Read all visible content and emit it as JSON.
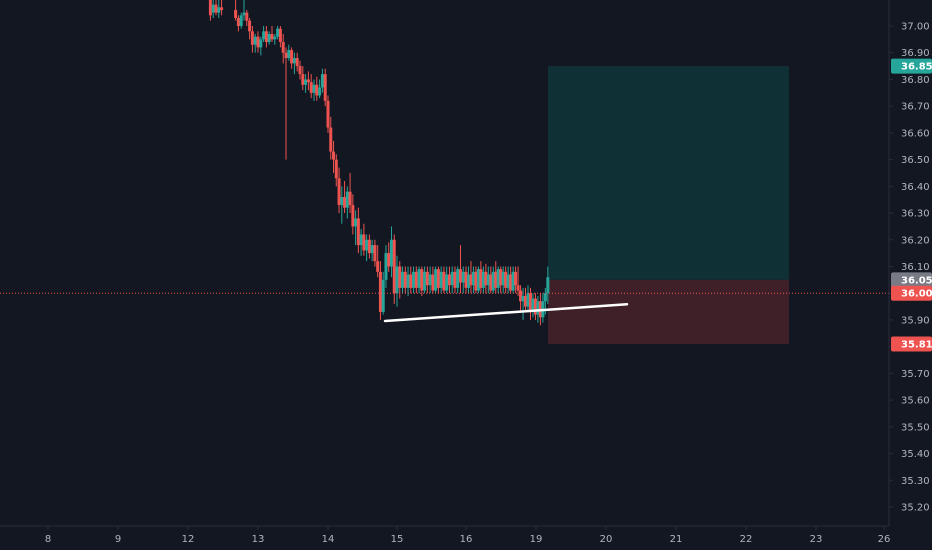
{
  "chart_data": {
    "type": "candlestick",
    "colors": {
      "background": "#131722",
      "up": "#26a69a",
      "down": "#ef5350",
      "price_line": "#ef5350",
      "profit_zone": "#0f3035",
      "loss_zone": "#3f2028",
      "trendline": "#ffffff",
      "axis_text": "#b2b5be",
      "axis_line": "#2a2e39"
    },
    "x_ticks": [
      "8",
      "9",
      "12",
      "13",
      "14",
      "15",
      "16",
      "19",
      "20",
      "21",
      "22",
      "23",
      "26"
    ],
    "y_ticks": [
      "37.00",
      "36.90",
      "36.80",
      "36.70",
      "36.60",
      "36.50",
      "36.40",
      "36.30",
      "36.20",
      "36.10",
      "36.00",
      "35.90",
      "35.80",
      "35.70",
      "35.60",
      "35.50",
      "35.40",
      "35.30",
      "35.20"
    ],
    "ylim": [
      35.15,
      37.1
    ],
    "badges": [
      {
        "label": "36.85",
        "value": 36.85,
        "color": "#26a69a"
      },
      {
        "label": "36.05",
        "value": 36.05,
        "color": "#787b86"
      },
      {
        "label": "36.00",
        "value": 36.0,
        "color": "#ef5350"
      },
      {
        "label": "35.81",
        "value": 35.81,
        "color": "#ef5350"
      }
    ],
    "current_price": 36.0,
    "position": {
      "entry": 36.05,
      "take_profit": 36.85,
      "stop_loss": 35.81,
      "start_day": 19.2,
      "end_day": 22.65
    },
    "trendline": {
      "from_day": 14.8,
      "from_price": 35.9,
      "to_day": 20.3,
      "to_price": 35.97
    },
    "candles": [
      [
        12.32,
        37.1,
        37.1,
        37.02,
        37.04
      ],
      [
        12.36,
        37.05,
        37.1,
        37.03,
        37.08
      ],
      [
        12.4,
        37.08,
        37.1,
        37.04,
        37.05
      ],
      [
        12.44,
        37.05,
        37.1,
        37.03,
        37.07
      ],
      [
        12.48,
        37.07,
        37.1,
        37.04,
        37.06
      ],
      [
        12.68,
        37.06,
        37.1,
        37.02,
        37.03
      ],
      [
        12.72,
        37.03,
        37.04,
        36.98,
        37.0
      ],
      [
        12.76,
        37.0,
        37.05,
        36.99,
        37.04
      ],
      [
        12.8,
        37.04,
        37.1,
        37.02,
        37.05
      ],
      [
        12.84,
        37.05,
        37.06,
        37.0,
        37.02
      ],
      [
        12.88,
        37.02,
        37.03,
        36.95,
        36.98
      ],
      [
        12.92,
        36.98,
        37.0,
        36.9,
        36.93
      ],
      [
        12.96,
        36.93,
        36.97,
        36.9,
        36.96
      ],
      [
        13.0,
        36.96,
        36.98,
        36.9,
        36.92
      ],
      [
        13.04,
        36.92,
        36.96,
        36.89,
        36.95
      ],
      [
        13.08,
        36.95,
        37.0,
        36.94,
        36.98
      ],
      [
        13.12,
        36.98,
        37.0,
        36.92,
        36.94
      ],
      [
        13.16,
        36.94,
        36.98,
        36.93,
        36.97
      ],
      [
        13.2,
        36.97,
        37.0,
        36.94,
        36.95
      ],
      [
        13.24,
        36.95,
        36.97,
        36.93,
        36.96
      ],
      [
        13.28,
        36.96,
        37.0,
        36.95,
        36.99
      ],
      [
        13.32,
        36.99,
        37.0,
        36.92,
        36.94
      ],
      [
        13.36,
        36.94,
        36.97,
        36.86,
        36.9
      ],
      [
        13.4,
        36.9,
        36.92,
        36.5,
        36.88
      ],
      [
        13.44,
        36.88,
        36.93,
        36.87,
        36.91
      ],
      [
        13.48,
        36.91,
        36.92,
        36.84,
        36.86
      ],
      [
        13.52,
        36.86,
        36.9,
        36.82,
        36.88
      ],
      [
        13.56,
        36.88,
        36.9,
        36.83,
        36.85
      ],
      [
        13.6,
        36.85,
        36.87,
        36.8,
        36.82
      ],
      [
        13.64,
        36.82,
        36.85,
        36.76,
        36.78
      ],
      [
        13.68,
        36.78,
        36.82,
        36.75,
        36.8
      ],
      [
        13.72,
        36.8,
        36.83,
        36.76,
        36.79
      ],
      [
        13.76,
        36.79,
        36.82,
        36.73,
        36.75
      ],
      [
        13.8,
        36.75,
        36.8,
        36.72,
        36.78
      ],
      [
        13.84,
        36.78,
        36.81,
        36.72,
        36.74
      ],
      [
        13.88,
        36.74,
        36.8,
        36.73,
        36.77
      ],
      [
        13.92,
        36.77,
        36.84,
        36.75,
        36.82
      ],
      [
        13.96,
        36.82,
        36.84,
        36.7,
        36.72
      ],
      [
        14.0,
        36.72,
        36.74,
        36.6,
        36.62
      ],
      [
        14.04,
        36.62,
        36.66,
        36.5,
        36.53
      ],
      [
        14.08,
        36.53,
        36.57,
        36.45,
        36.5
      ],
      [
        14.12,
        36.5,
        36.52,
        36.4,
        36.43
      ],
      [
        14.16,
        36.43,
        36.47,
        36.3,
        36.33
      ],
      [
        14.2,
        36.33,
        36.4,
        36.26,
        36.36
      ],
      [
        14.24,
        36.36,
        36.42,
        36.3,
        36.32
      ],
      [
        14.28,
        36.32,
        36.4,
        36.28,
        36.38
      ],
      [
        14.32,
        36.38,
        36.45,
        36.3,
        36.33
      ],
      [
        14.36,
        36.33,
        36.37,
        36.22,
        36.25
      ],
      [
        14.4,
        36.25,
        36.31,
        36.18,
        36.28
      ],
      [
        14.44,
        36.28,
        36.32,
        36.15,
        36.18
      ],
      [
        14.48,
        36.18,
        36.24,
        36.14,
        36.22
      ],
      [
        14.52,
        36.22,
        36.26,
        36.14,
        36.16
      ],
      [
        14.56,
        36.16,
        36.22,
        36.12,
        36.2
      ],
      [
        14.6,
        36.2,
        36.22,
        36.13,
        36.15
      ],
      [
        14.64,
        36.15,
        36.2,
        36.12,
        36.18
      ],
      [
        14.68,
        36.18,
        36.2,
        36.1,
        36.12
      ],
      [
        14.72,
        36.12,
        36.18,
        36.06,
        36.08
      ],
      [
        14.76,
        36.08,
        36.12,
        35.9,
        35.93
      ],
      [
        14.8,
        35.93,
        36.08,
        35.92,
        36.05
      ],
      [
        14.84,
        36.05,
        36.18,
        36.02,
        36.15
      ],
      [
        14.88,
        36.15,
        36.19,
        36.08,
        36.1
      ],
      [
        14.92,
        36.1,
        36.25,
        36.06,
        36.2
      ],
      [
        14.96,
        36.2,
        36.22,
        35.96,
        36.0
      ],
      [
        15.0,
        36.0,
        36.14,
        35.95,
        36.1
      ],
      [
        15.04,
        36.1,
        36.12,
        35.98,
        36.02
      ],
      [
        15.08,
        36.02,
        36.1,
        36.0,
        36.08
      ],
      [
        15.12,
        36.08,
        36.1,
        36.0,
        36.02
      ],
      [
        15.16,
        36.02,
        36.1,
        35.99,
        36.07
      ],
      [
        15.2,
        36.07,
        36.1,
        36.0,
        36.02
      ],
      [
        15.24,
        36.02,
        36.1,
        36.0,
        36.08
      ],
      [
        15.28,
        36.08,
        36.1,
        36.0,
        36.02
      ],
      [
        15.32,
        36.02,
        36.1,
        36.0,
        36.09
      ],
      [
        15.36,
        36.09,
        36.1,
        35.99,
        36.01
      ],
      [
        15.4,
        36.01,
        36.1,
        36.0,
        36.08
      ],
      [
        15.44,
        36.08,
        36.1,
        36.0,
        36.03
      ],
      [
        15.48,
        36.03,
        36.1,
        36.0,
        36.07
      ],
      [
        15.52,
        36.07,
        36.1,
        36.0,
        36.01
      ],
      [
        15.56,
        36.01,
        36.1,
        36.0,
        36.09
      ],
      [
        15.6,
        36.09,
        36.1,
        36.0,
        36.02
      ],
      [
        15.64,
        36.02,
        36.1,
        36.0,
        36.08
      ],
      [
        15.68,
        36.08,
        36.1,
        36.0,
        36.01
      ],
      [
        15.72,
        36.01,
        36.1,
        36.0,
        36.07
      ],
      [
        15.76,
        36.07,
        36.1,
        36.0,
        36.03
      ],
      [
        15.8,
        36.03,
        36.1,
        36.0,
        36.08
      ],
      [
        15.84,
        36.08,
        36.1,
        36.0,
        36.02
      ],
      [
        15.88,
        36.02,
        36.1,
        36.0,
        36.09
      ],
      [
        15.92,
        36.09,
        36.18,
        36.0,
        36.04
      ],
      [
        15.96,
        36.04,
        36.1,
        36.0,
        36.08
      ],
      [
        16.0,
        36.08,
        36.1,
        36.0,
        36.02
      ],
      [
        16.04,
        36.02,
        36.1,
        36.0,
        36.07
      ],
      [
        16.08,
        36.07,
        36.12,
        36.0,
        36.03
      ],
      [
        16.12,
        36.03,
        36.1,
        36.0,
        36.08
      ],
      [
        16.16,
        36.08,
        36.1,
        36.0,
        36.01
      ],
      [
        16.2,
        36.01,
        36.1,
        36.0,
        36.09
      ],
      [
        16.24,
        36.09,
        36.12,
        36.0,
        36.02
      ],
      [
        16.28,
        36.02,
        36.1,
        36.0,
        36.08
      ],
      [
        16.32,
        36.08,
        36.11,
        36.0,
        36.03
      ],
      [
        16.36,
        36.03,
        36.1,
        36.0,
        36.07
      ],
      [
        16.4,
        36.07,
        36.1,
        36.0,
        36.01
      ],
      [
        16.44,
        36.01,
        36.1,
        36.0,
        36.08
      ],
      [
        16.48,
        36.08,
        36.12,
        36.0,
        36.02
      ],
      [
        16.52,
        36.02,
        36.1,
        36.0,
        36.09
      ],
      [
        16.56,
        36.09,
        36.1,
        36.0,
        36.03
      ],
      [
        16.6,
        36.03,
        36.1,
        36.0,
        36.08
      ],
      [
        16.64,
        36.08,
        36.1,
        36.0,
        36.02
      ],
      [
        16.68,
        36.02,
        36.1,
        36.0,
        36.07
      ],
      [
        16.72,
        36.07,
        36.1,
        36.0,
        36.01
      ],
      [
        16.76,
        36.01,
        36.1,
        36.0,
        36.08
      ],
      [
        16.8,
        36.08,
        36.1,
        36.0,
        36.03
      ],
      [
        16.84,
        36.03,
        36.1,
        35.99,
        36.01
      ],
      [
        16.88,
        36.01,
        36.03,
        35.93,
        35.97
      ],
      [
        16.92,
        35.97,
        36.02,
        35.9,
        35.99
      ],
      [
        16.96,
        35.99,
        36.02,
        35.93,
        35.95
      ],
      [
        17.0,
        35.95,
        36.03,
        35.93,
        36.0
      ],
      [
        17.04,
        36.0,
        36.02,
        35.9,
        35.93
      ],
      [
        17.08,
        35.93,
        36.0,
        35.91,
        35.98
      ],
      [
        17.12,
        35.98,
        36.0,
        35.9,
        35.92
      ],
      [
        17.16,
        35.92,
        35.99,
        35.89,
        35.97
      ],
      [
        17.2,
        35.97,
        36.0,
        35.88,
        35.91
      ],
      [
        17.24,
        35.91,
        36.0,
        35.89,
        35.97
      ],
      [
        17.28,
        35.97,
        36.02,
        35.92,
        36.0
      ],
      [
        17.32,
        36.0,
        36.1,
        35.96,
        36.06
      ]
    ]
  }
}
